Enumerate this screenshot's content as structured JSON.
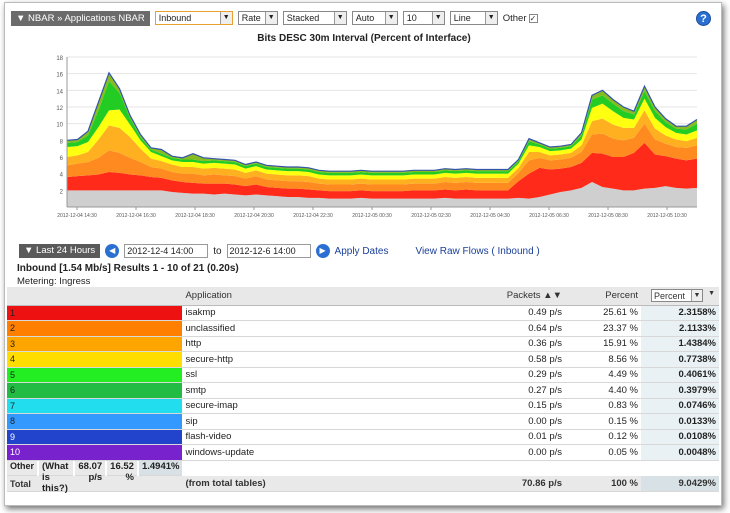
{
  "toolbar": {
    "breadcrumb": "▼ NBAR » Applications NBAR",
    "direction": "Inbound",
    "metric": "Rate",
    "mode": "Stacked",
    "scale": "Auto",
    "count": "10",
    "style": "Line",
    "other_label": "Other",
    "other_checked": "✓",
    "help": "?"
  },
  "chart": {
    "title": "Bits DESC 30m Interval (Percent of Interface)",
    "y_ticks": [
      "2",
      "4",
      "6",
      "8",
      "10",
      "12",
      "14",
      "16",
      "18"
    ],
    "x_ticks": [
      "2012-12-04 14:30",
      "2012-12-04 16:30",
      "2012-12-04 18:30",
      "2012-12-04 20:30",
      "2012-12-04 22:30",
      "2012-12-05 00:30",
      "2012-12-05 02:30",
      "2012-12-05 04:30",
      "2012-12-05 06:30",
      "2012-12-05 08:30",
      "2012-12-05 10:30"
    ]
  },
  "chart_data": {
    "type": "area",
    "title": "Bits DESC 30m Interval (Percent of Interface)",
    "ylim": [
      0,
      18
    ],
    "series_colors": [
      "#cfcfcf",
      "#ff2a1a",
      "#ff8a20",
      "#ffb020",
      "#ffff10",
      "#22cc22",
      "#88bb22"
    ],
    "series": [
      {
        "name": "",
        "values": [
          2,
          2,
          2,
          2,
          2,
          2,
          2,
          2,
          2,
          2,
          1.8,
          1.7,
          1.6,
          1.6,
          1.5,
          1.6,
          1.5,
          1.4,
          1.5,
          1.4,
          1.3,
          1.2,
          1.2,
          1.1,
          1.1,
          1.0,
          1.0,
          1.0,
          1.1,
          1.0,
          1.0,
          1.0,
          1.0,
          1.0,
          1.0,
          1.0,
          1.1,
          1.0,
          1.0,
          1.0,
          1.0,
          1.0,
          1.0,
          1.1,
          1.0,
          1.2,
          1.5,
          1.8,
          2,
          2.3,
          3,
          2.4,
          2.2,
          2,
          2,
          2.2,
          2.3,
          2.5,
          2.3,
          2.2,
          2.3
        ]
      },
      {
        "name": "",
        "values": [
          1.6,
          1.7,
          1.8,
          1.9,
          2.2,
          2.1,
          1.9,
          1.8,
          1.6,
          1.5,
          1.4,
          1.3,
          1.3,
          1.2,
          1.3,
          1.2,
          1.2,
          1.1,
          1.2,
          1.0,
          1.0,
          1.0,
          1.0,
          1.0,
          0.9,
          0.9,
          0.9,
          0.9,
          0.9,
          0.9,
          0.9,
          0.9,
          0.9,
          1.0,
          1.0,
          1.0,
          1.0,
          1.0,
          1.1,
          1.0,
          1.0,
          1.0,
          1.0,
          2.0,
          3.0,
          3.5,
          3.0,
          2.8,
          2.8,
          3.0,
          3.5,
          4.0,
          3.8,
          4.0,
          4.5,
          5.5,
          4.0,
          3.6,
          3.5,
          3.4,
          3.5
        ]
      },
      {
        "name": "",
        "values": [
          1.4,
          1.5,
          1.6,
          2.0,
          2.6,
          2.4,
          2.0,
          1.6,
          1.2,
          1.1,
          1.0,
          1.0,
          1.1,
          1.0,
          1.1,
          1.0,
          1.0,
          0.9,
          1.0,
          0.9,
          0.9,
          0.9,
          0.9,
          0.9,
          0.8,
          0.8,
          0.8,
          0.8,
          0.8,
          0.8,
          0.8,
          0.8,
          0.8,
          0.8,
          0.8,
          0.8,
          0.9,
          0.9,
          0.9,
          0.9,
          0.9,
          0.9,
          0.9,
          1.0,
          1.6,
          1.2,
          1.1,
          1.1,
          1.1,
          1.3,
          2.2,
          2.4,
          2.2,
          2.0,
          1.8,
          2.3,
          1.8,
          1.5,
          1.4,
          1.5,
          1.6
        ]
      },
      {
        "name": "",
        "values": [
          1.0,
          1.0,
          1.2,
          2.2,
          3.0,
          3.0,
          2.5,
          1.6,
          1.0,
          0.9,
          0.9,
          0.8,
          0.8,
          0.8,
          0.8,
          0.8,
          0.8,
          0.7,
          0.7,
          0.7,
          0.7,
          0.7,
          0.7,
          0.7,
          0.6,
          0.6,
          0.6,
          0.6,
          0.6,
          0.6,
          0.6,
          0.6,
          0.6,
          0.6,
          0.6,
          0.6,
          0.6,
          0.6,
          0.6,
          0.6,
          0.6,
          0.6,
          0.6,
          0.6,
          1.0,
          0.7,
          0.6,
          0.6,
          0.6,
          0.8,
          1.6,
          1.8,
          1.7,
          1.5,
          1.2,
          1.6,
          1.3,
          1.0,
          0.9,
          0.8,
          0.9
        ]
      },
      {
        "name": "",
        "values": [
          1.2,
          1.1,
          1.2,
          1.5,
          1.8,
          2.2,
          1.5,
          1.0,
          0.8,
          0.6,
          0.5,
          0.6,
          0.6,
          0.6,
          0.6,
          0.6,
          0.6,
          0.5,
          0.5,
          0.5,
          0.5,
          0.5,
          0.5,
          0.5,
          0.5,
          0.5,
          0.5,
          0.5,
          0.5,
          0.5,
          0.5,
          0.5,
          0.5,
          0.5,
          0.5,
          0.5,
          0.5,
          0.5,
          0.5,
          0.5,
          0.5,
          0.5,
          0.5,
          0.5,
          0.8,
          0.6,
          0.5,
          0.5,
          0.5,
          0.7,
          1.6,
          1.8,
          1.6,
          1.2,
          1.0,
          1.4,
          1.3,
          1.0,
          0.8,
          0.8,
          0.9
        ]
      },
      {
        "name": "",
        "values": [
          0.5,
          0.5,
          0.8,
          2.0,
          3.5,
          2.0,
          0.8,
          0.4,
          0.3,
          0.3,
          0.3,
          0.3,
          0.3,
          0.3,
          0.3,
          0.3,
          0.3,
          0.3,
          0.3,
          0.3,
          0.3,
          0.3,
          0.3,
          0.3,
          0.3,
          0.3,
          0.3,
          0.3,
          0.3,
          0.3,
          0.3,
          0.3,
          0.3,
          0.3,
          0.3,
          0.3,
          0.3,
          0.3,
          0.3,
          0.3,
          0.3,
          0.3,
          0.3,
          0.3,
          0.5,
          0.3,
          0.3,
          0.3,
          0.3,
          0.5,
          1.0,
          1.0,
          0.9,
          0.8,
          0.6,
          0.9,
          0.8,
          0.6,
          0.5,
          0.6,
          0.8
        ]
      },
      {
        "name": "",
        "values": [
          0.3,
          0.3,
          0.5,
          1.0,
          1.0,
          0.5,
          0.3,
          0.3,
          0.2,
          0.5,
          0.2,
          0.2,
          0.7,
          0.4,
          0.2,
          0.2,
          0.2,
          0.2,
          0.2,
          0.2,
          0.2,
          0.2,
          0.2,
          0.2,
          0.2,
          0.2,
          0.2,
          0.2,
          0.2,
          0.2,
          0.2,
          0.2,
          0.2,
          0.2,
          0.2,
          0.2,
          0.2,
          0.2,
          0.2,
          0.2,
          0.2,
          0.2,
          0.2,
          0.2,
          0.3,
          0.2,
          0.2,
          0.2,
          0.2,
          0.3,
          0.5,
          0.6,
          0.5,
          0.5,
          0.4,
          0.6,
          0.5,
          0.4,
          0.3,
          0.4,
          0.5
        ]
      }
    ]
  },
  "daterange": {
    "preset": "▼ Last 24 Hours",
    "prev": "◀",
    "start": "2012-12-4 14:00",
    "to": "to",
    "end": "2012-12-6 14:00",
    "next": "▶",
    "apply": "Apply Dates",
    "raw": "View Raw Flows ( Inbound )"
  },
  "summary": "Inbound [1.54 Mb/s] Results 1 - 10 of 21 (0.20s)",
  "metering": "Metering: Ingress",
  "table": {
    "headers": {
      "app": "Application",
      "packets": "Packets ▲▼",
      "percent": "Percent",
      "sel": "Percent",
      "sort": "▼"
    },
    "rows": [
      {
        "idx": "1",
        "color": "#ee1111",
        "name": "isakmp",
        "packets": "0.49 p/s",
        "percent": "25.61 %",
        "value": "2.3158%"
      },
      {
        "idx": "2",
        "color": "#ff7f00",
        "name": "unclassified",
        "packets": "0.64 p/s",
        "percent": "23.37 %",
        "value": "2.1133%"
      },
      {
        "idx": "3",
        "color": "#ffa500",
        "name": "http",
        "packets": "0.36 p/s",
        "percent": "15.91 %",
        "value": "1.4384%"
      },
      {
        "idx": "4",
        "color": "#ffdd00",
        "name": "secure-http",
        "packets": "0.58 p/s",
        "percent": "8.56 %",
        "value": "0.7738%"
      },
      {
        "idx": "5",
        "color": "#22ee22",
        "name": "ssl",
        "packets": "0.29 p/s",
        "percent": "4.49 %",
        "value": "0.4061%"
      },
      {
        "idx": "6",
        "color": "#22bb44",
        "name": "smtp",
        "packets": "0.27 p/s",
        "percent": "4.40 %",
        "value": "0.3979%"
      },
      {
        "idx": "7",
        "color": "#22ddee",
        "name": "secure-imap",
        "packets": "0.15 p/s",
        "percent": "0.83 %",
        "value": "0.0746%"
      },
      {
        "idx": "8",
        "color": "#3399ff",
        "name": "sip",
        "packets": "0.00 p/s",
        "percent": "0.15 %",
        "value": "0.0133%"
      },
      {
        "idx": "9",
        "color": "#2244cc",
        "name": "flash-video",
        "packets": "0.01 p/s",
        "percent": "0.12 %",
        "value": "0.0108%"
      },
      {
        "idx": "10",
        "color": "#7722cc",
        "name": "windows-update",
        "packets": "0.00 p/s",
        "percent": "0.05 %",
        "value": "0.0048%"
      }
    ],
    "other": {
      "idx": "Other",
      "name": "(What is this?)",
      "packets": "68.07 p/s",
      "percent": "16.52 %",
      "value": "1.4941%"
    },
    "total": {
      "idx": "Total",
      "name": "(from total tables)",
      "packets": "70.86 p/s",
      "percent": "100 %",
      "value": "9.0429%"
    }
  }
}
